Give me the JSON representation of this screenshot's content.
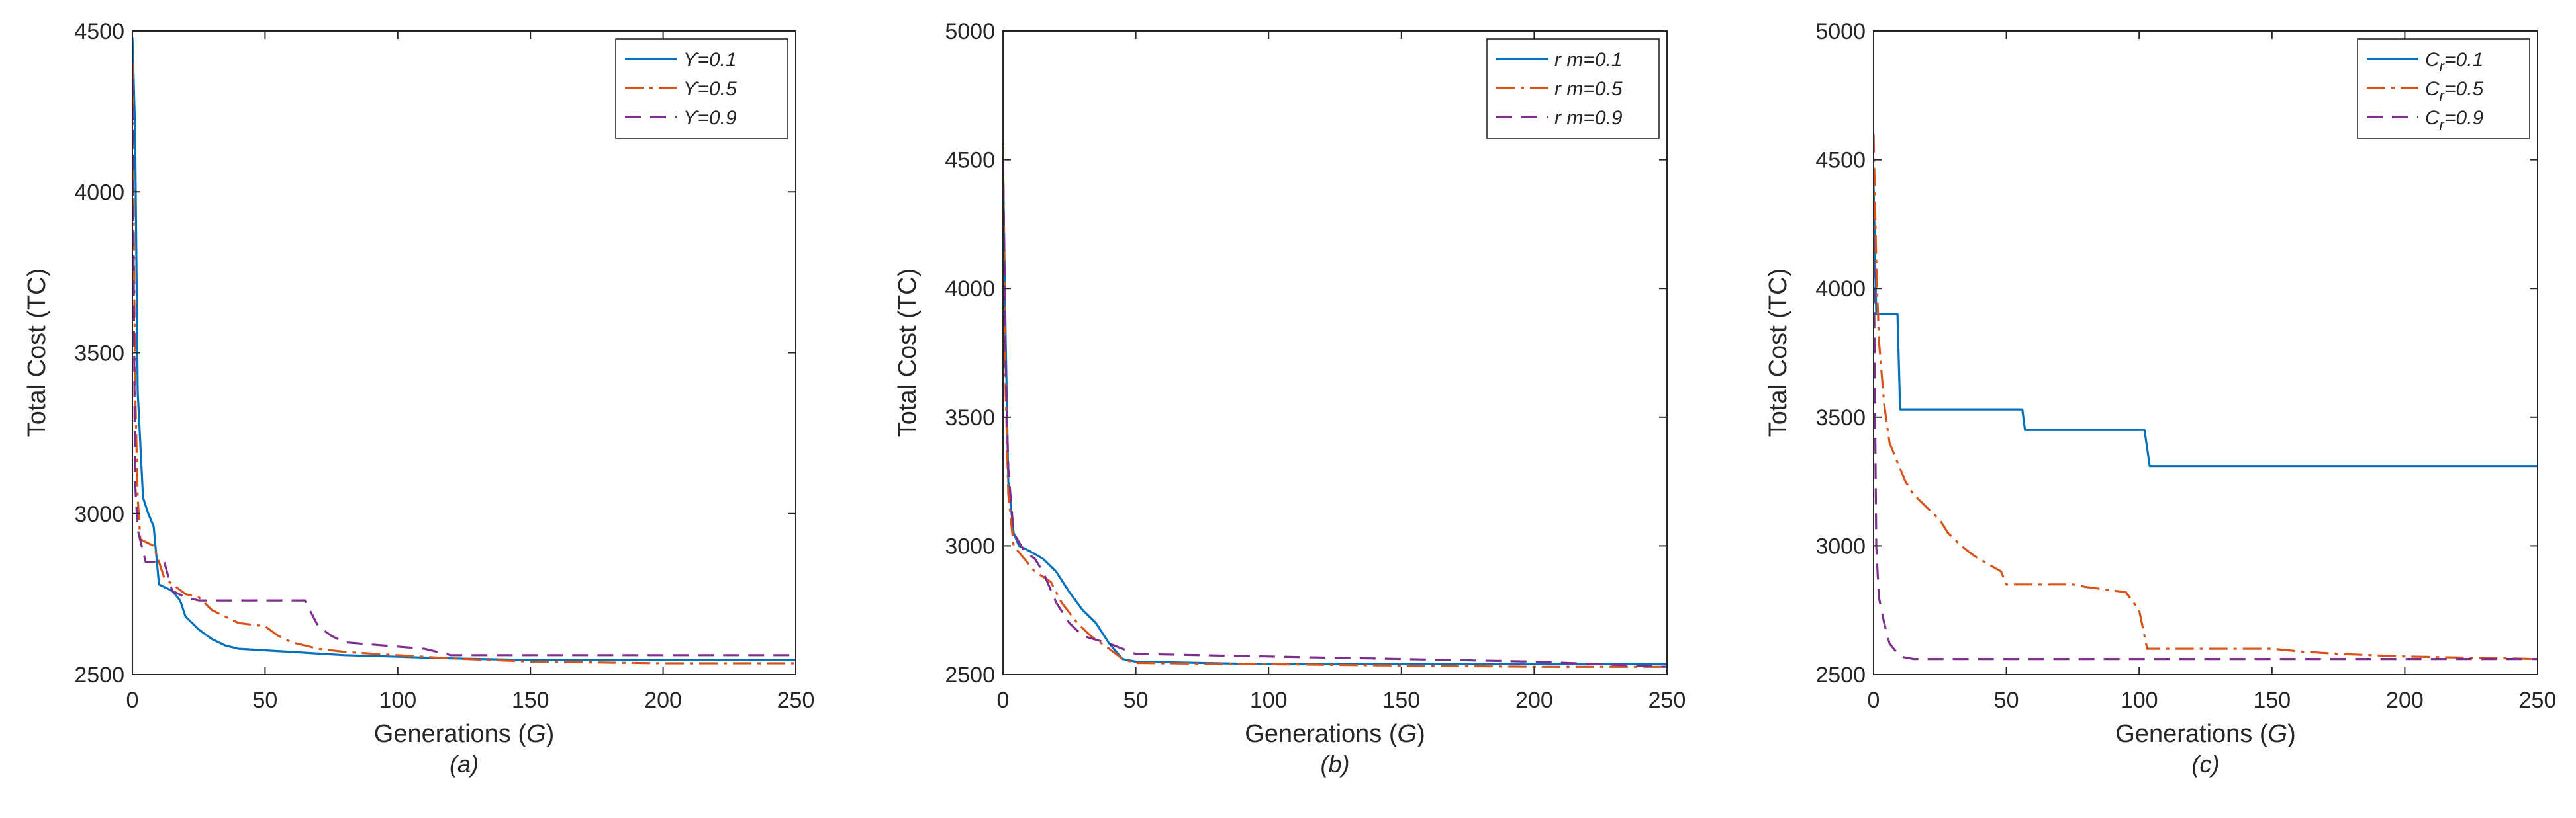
{
  "chart_data": [
    {
      "type": "line",
      "panel_label": "(a)",
      "xlabel": "Generations",
      "xlabel_symbol": "G",
      "ylabel": "Total Cost (TC)",
      "xlim": [
        0,
        250
      ],
      "ylim": [
        2500,
        4500
      ],
      "xticks": [
        0,
        50,
        100,
        150,
        200,
        250
      ],
      "yticks": [
        2500,
        3000,
        3500,
        4000,
        4500
      ],
      "legend_position": "top-right",
      "series": [
        {
          "name": "ϒ=0.1",
          "label": {
            "base": "ϒ=0.1"
          },
          "color": "#0072BD",
          "style": "solid",
          "points": [
            [
              0,
              4480
            ],
            [
              1,
              4200
            ],
            [
              2,
              3380
            ],
            [
              4,
              3050
            ],
            [
              6,
              3000
            ],
            [
              8,
              2960
            ],
            [
              10,
              2780
            ],
            [
              15,
              2760
            ],
            [
              18,
              2730
            ],
            [
              20,
              2680
            ],
            [
              25,
              2640
            ],
            [
              30,
              2610
            ],
            [
              35,
              2590
            ],
            [
              40,
              2580
            ],
            [
              50,
              2575
            ],
            [
              60,
              2570
            ],
            [
              70,
              2565
            ],
            [
              80,
              2560
            ],
            [
              100,
              2555
            ],
            [
              120,
              2550
            ],
            [
              150,
              2545
            ],
            [
              200,
              2545
            ],
            [
              250,
              2545
            ]
          ]
        },
        {
          "name": "ϒ=0.5",
          "label": {
            "base": "ϒ=0.5"
          },
          "color": "#D95319",
          "style": "dashdot",
          "points": [
            [
              0,
              4400
            ],
            [
              1,
              3400
            ],
            [
              2,
              3050
            ],
            [
              3,
              2920
            ],
            [
              8,
              2900
            ],
            [
              10,
              2850
            ],
            [
              12,
              2800
            ],
            [
              20,
              2750
            ],
            [
              25,
              2740
            ],
            [
              30,
              2700
            ],
            [
              40,
              2660
            ],
            [
              50,
              2650
            ],
            [
              55,
              2620
            ],
            [
              60,
              2600
            ],
            [
              70,
              2580
            ],
            [
              80,
              2570
            ],
            [
              100,
              2560
            ],
            [
              120,
              2550
            ],
            [
              150,
              2540
            ],
            [
              200,
              2535
            ],
            [
              250,
              2535
            ]
          ]
        },
        {
          "name": "ϒ=0.9",
          "label": {
            "base": "ϒ=0.9"
          },
          "color": "#7E2F8E",
          "style": "dashed",
          "points": [
            [
              0,
              4350
            ],
            [
              1,
              3100
            ],
            [
              2,
              2950
            ],
            [
              5,
              2850
            ],
            [
              12,
              2850
            ],
            [
              15,
              2760
            ],
            [
              20,
              2740
            ],
            [
              25,
              2730
            ],
            [
              65,
              2730
            ],
            [
              70,
              2650
            ],
            [
              75,
              2620
            ],
            [
              80,
              2600
            ],
            [
              110,
              2580
            ],
            [
              120,
              2560
            ],
            [
              250,
              2560
            ]
          ]
        }
      ]
    },
    {
      "type": "line",
      "panel_label": "(b)",
      "xlabel": "Generations",
      "xlabel_symbol": "G",
      "ylabel": "Total Cost (TC)",
      "xlim": [
        0,
        250
      ],
      "ylim": [
        2500,
        5000
      ],
      "xticks": [
        0,
        50,
        100,
        150,
        200,
        250
      ],
      "yticks": [
        2500,
        3000,
        3500,
        4000,
        4500,
        5000
      ],
      "legend_position": "top-right",
      "series": [
        {
          "name": "r m=0.1",
          "label": {
            "base": "r m=0.1"
          },
          "color": "#0072BD",
          "style": "solid",
          "points": [
            [
              0,
              4500
            ],
            [
              1,
              3800
            ],
            [
              2,
              3250
            ],
            [
              4,
              3050
            ],
            [
              6,
              3000
            ],
            [
              10,
              2980
            ],
            [
              15,
              2950
            ],
            [
              20,
              2900
            ],
            [
              25,
              2820
            ],
            [
              30,
              2750
            ],
            [
              35,
              2700
            ],
            [
              40,
              2620
            ],
            [
              45,
              2560
            ],
            [
              50,
              2550
            ],
            [
              100,
              2540
            ],
            [
              150,
              2540
            ],
            [
              200,
              2540
            ],
            [
              250,
              2540
            ]
          ]
        },
        {
          "name": "r m=0.5",
          "label": {
            "base": "r m=0.5"
          },
          "color": "#D95319",
          "style": "dashdot",
          "points": [
            [
              0,
              4550
            ],
            [
              1,
              3600
            ],
            [
              2,
              3200
            ],
            [
              4,
              3000
            ],
            [
              8,
              2950
            ],
            [
              12,
              2900
            ],
            [
              18,
              2860
            ],
            [
              22,
              2780
            ],
            [
              28,
              2700
            ],
            [
              33,
              2650
            ],
            [
              40,
              2600
            ],
            [
              45,
              2560
            ],
            [
              50,
              2545
            ],
            [
              100,
              2540
            ],
            [
              150,
              2535
            ],
            [
              200,
              2530
            ],
            [
              250,
              2530
            ]
          ]
        },
        {
          "name": "r m=0.9",
          "label": {
            "base": "r m=0.9"
          },
          "color": "#7E2F8E",
          "style": "dashed",
          "points": [
            [
              0,
              4500
            ],
            [
              1,
              3700
            ],
            [
              2,
              3300
            ],
            [
              4,
              3050
            ],
            [
              8,
              2980
            ],
            [
              12,
              2950
            ],
            [
              15,
              2900
            ],
            [
              20,
              2780
            ],
            [
              25,
              2700
            ],
            [
              30,
              2650
            ],
            [
              40,
              2620
            ],
            [
              45,
              2600
            ],
            [
              50,
              2580
            ],
            [
              100,
              2570
            ],
            [
              150,
              2560
            ],
            [
              200,
              2550
            ],
            [
              250,
              2530
            ]
          ]
        }
      ]
    },
    {
      "type": "line",
      "panel_label": "(c)",
      "xlabel": "Generations",
      "xlabel_symbol": "G",
      "ylabel": "Total Cost (TC)",
      "xlim": [
        0,
        250
      ],
      "ylim": [
        2500,
        5000
      ],
      "xticks": [
        0,
        50,
        100,
        150,
        200,
        250
      ],
      "yticks": [
        2500,
        3000,
        3500,
        4000,
        4500,
        5000
      ],
      "legend_position": "top-right",
      "series": [
        {
          "name": "Cr=0.1",
          "label": {
            "base": "C",
            "sub": "r",
            "suffix": "=0.1"
          },
          "color": "#0072BD",
          "style": "solid",
          "points": [
            [
              0,
              4400
            ],
            [
              1,
              3900
            ],
            [
              9,
              3900
            ],
            [
              10,
              3530
            ],
            [
              56,
              3530
            ],
            [
              57,
              3450
            ],
            [
              102,
              3450
            ],
            [
              104,
              3310
            ],
            [
              250,
              3310
            ]
          ]
        },
        {
          "name": "Cr=0.5",
          "label": {
            "base": "C",
            "sub": "r",
            "suffix": "=0.5"
          },
          "color": "#D95319",
          "style": "dashdot",
          "points": [
            [
              0,
              4600
            ],
            [
              1,
              4100
            ],
            [
              2,
              3800
            ],
            [
              4,
              3550
            ],
            [
              6,
              3400
            ],
            [
              8,
              3350
            ],
            [
              12,
              3250
            ],
            [
              15,
              3200
            ],
            [
              20,
              3150
            ],
            [
              25,
              3100
            ],
            [
              28,
              3050
            ],
            [
              33,
              3000
            ],
            [
              38,
              2960
            ],
            [
              43,
              2930
            ],
            [
              48,
              2900
            ],
            [
              50,
              2850
            ],
            [
              75,
              2850
            ],
            [
              80,
              2840
            ],
            [
              95,
              2820
            ],
            [
              100,
              2750
            ],
            [
              103,
              2600
            ],
            [
              150,
              2600
            ],
            [
              160,
              2590
            ],
            [
              175,
              2580
            ],
            [
              200,
              2570
            ],
            [
              250,
              2560
            ]
          ]
        },
        {
          "name": "Cr=0.9",
          "label": {
            "base": "C",
            "sub": "r",
            "suffix": "=0.9"
          },
          "color": "#7E2F8E",
          "style": "dashed",
          "points": [
            [
              0,
              4200
            ],
            [
              1,
              3000
            ],
            [
              2,
              2800
            ],
            [
              4,
              2700
            ],
            [
              6,
              2620
            ],
            [
              10,
              2570
            ],
            [
              15,
              2560
            ],
            [
              250,
              2560
            ]
          ]
        }
      ]
    }
  ]
}
